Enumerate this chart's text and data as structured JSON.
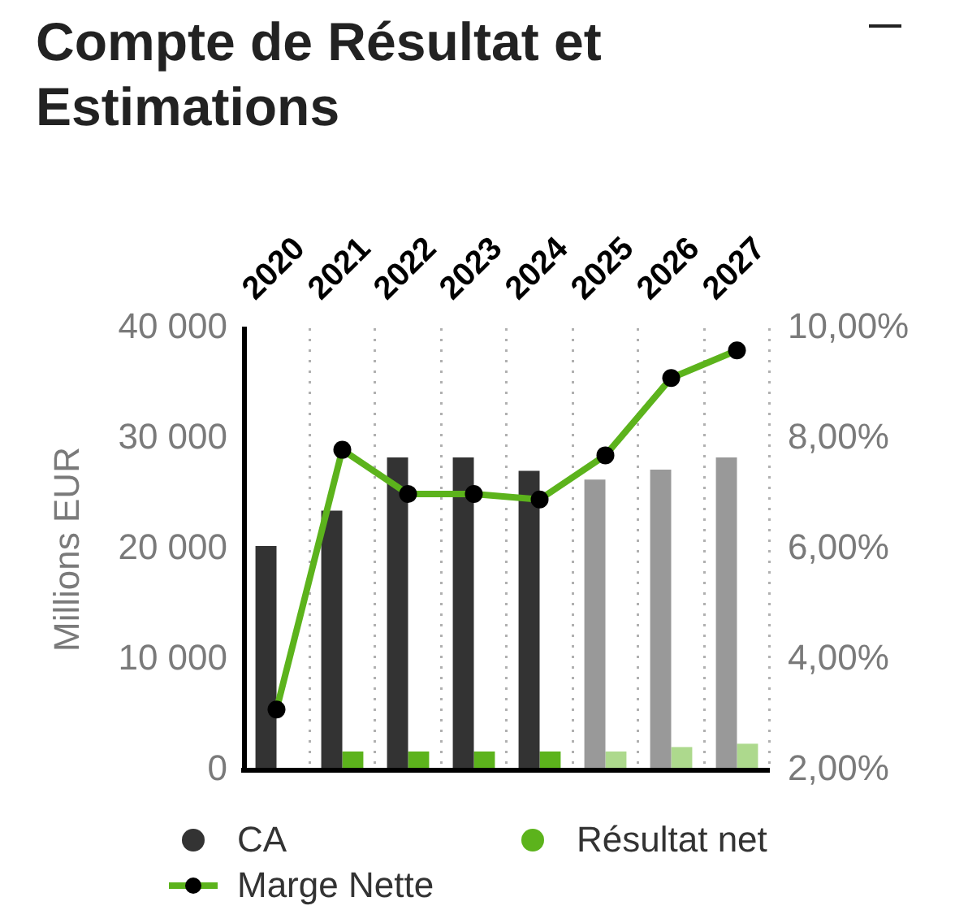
{
  "chart_data": {
    "type": "bar",
    "title": "Compte de Résultat et Estimations",
    "ylabel": "Millions EUR",
    "categories": [
      "2020",
      "2021",
      "2022",
      "2023",
      "2024",
      "2025",
      "2026",
      "2027"
    ],
    "series": [
      {
        "name": "CA",
        "color": "#333333",
        "colors": [
          "#333333",
          "#333333",
          "#333333",
          "#333333",
          "#333333",
          "#999999",
          "#999999",
          "#999999"
        ],
        "values": [
          20300,
          23500,
          28300,
          28300,
          27100,
          26300,
          27200,
          28300
        ]
      },
      {
        "name": "Résultat net",
        "color": "#5cb31c",
        "colors": [
          "#5cb31c",
          "#5cb31c",
          "#5cb31c",
          "#5cb31c",
          "#5cb31c",
          "#add98d",
          "#add98d",
          "#add98d"
        ],
        "values": [
          null,
          1700,
          1700,
          1700,
          1700,
          1700,
          2100,
          2400
        ]
      },
      {
        "name": "Marge Nette",
        "type": "line",
        "axis": "y2",
        "color": "#5cb31c",
        "values": [
          3.1,
          7.8,
          7.0,
          7.0,
          6.9,
          7.7,
          9.1,
          9.6
        ]
      }
    ],
    "ylim": [
      0,
      40000
    ],
    "yticks": [
      0,
      {
        "value": 10000,
        "label": "10 000"
      },
      {
        "value": 20000,
        "label": "20 000"
      },
      {
        "value": 30000,
        "label": "30 000"
      },
      {
        "value": 40000,
        "label": "40 000"
      }
    ],
    "y2lim": [
      2,
      10
    ],
    "y2ticks": [
      {
        "value": 2,
        "label": "2,00%"
      },
      {
        "value": 4,
        "label": "4,00%"
      },
      {
        "value": 6,
        "label": "6,00%"
      },
      {
        "value": 8,
        "label": "8,00%"
      },
      {
        "value": 10,
        "label": "10,00%"
      }
    ],
    "grid": "x",
    "legend": "bottom",
    "marker": "circle"
  }
}
